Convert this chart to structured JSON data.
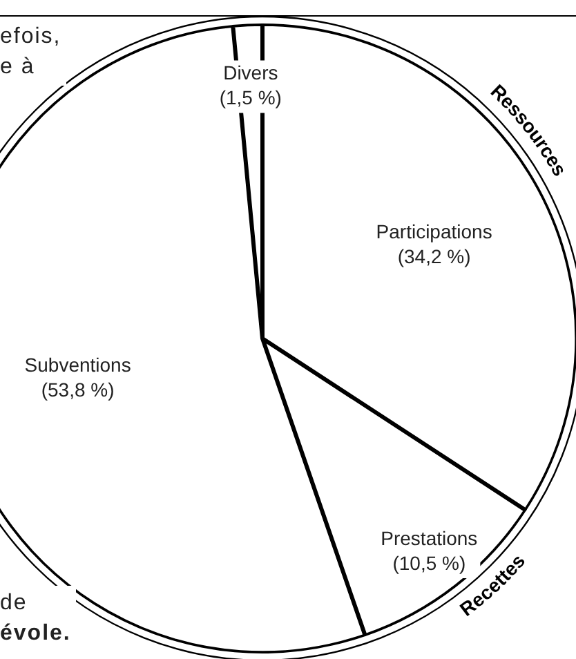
{
  "chart_data": {
    "type": "pie",
    "categories": [
      "Participations",
      "Prestations",
      "Subventions",
      "Divers"
    ],
    "values": [
      34.2,
      10.5,
      53.8,
      1.5
    ],
    "colors": [
      "#ffffff",
      "#ffffff",
      "#ffffff",
      "#ffffff"
    ],
    "value_labels": [
      "(34,2 %)",
      "(10,5 %)",
      "(53,8 %)",
      "(1,5 %)"
    ],
    "annotations": [
      "Ressources",
      "Recettes",
      "efois,\ne à",
      "de\névole."
    ],
    "legend": false
  }
}
